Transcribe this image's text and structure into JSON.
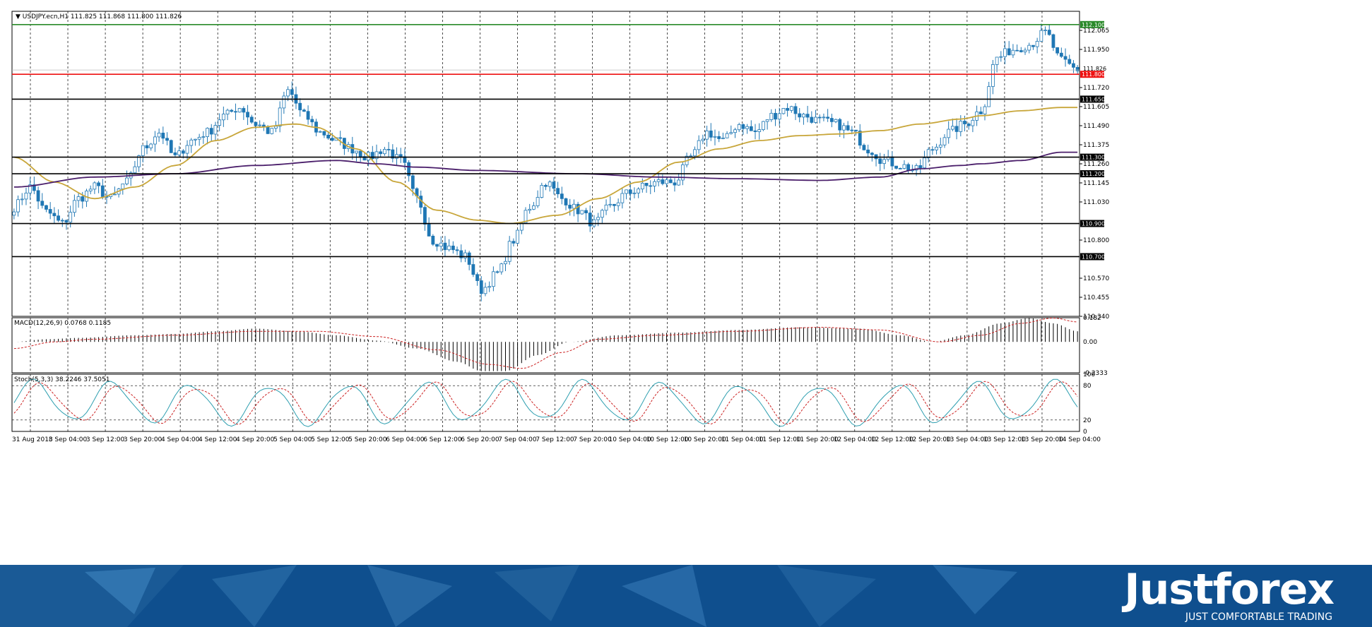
{
  "main_title": "USDJPY.ecn,H1",
  "ohlc": "111.825 111.868 111.800 111.826",
  "colors": {
    "bull": "#ffffff",
    "bear": "#1f77b4",
    "bull_border": "#1f77b4",
    "ma_fast": "#c8a63a",
    "ma_slow": "#4b1f6b",
    "macd_signal": "#cc2222",
    "stoch_main": "#2e9fb0",
    "stoch_signal": "#cc2222",
    "level_green": "#2a8a2a",
    "level_red": "#ee1111",
    "level_black": "#000000"
  },
  "chart_data": [
    {
      "type": "candlestick",
      "title": "USDJPY.ecn,H1  111.825 111.868 111.800 111.826",
      "x_tick_labels": [
        "31 Aug 2018",
        "3 Sep 04:00",
        "3 Sep 12:00",
        "3 Sep 20:00",
        "4 Sep 04:00",
        "4 Sep 12:00",
        "4 Sep 20:00",
        "5 Sep 04:00",
        "5 Sep 12:00",
        "5 Sep 20:00",
        "6 Sep 04:00",
        "6 Sep 12:00",
        "6 Sep 20:00",
        "7 Sep 04:00",
        "7 Sep 12:00",
        "7 Sep 20:00",
        "10 Sep 04:00",
        "10 Sep 12:00",
        "10 Sep 20:00",
        "11 Sep 04:00",
        "11 Sep 12:00",
        "11 Sep 20:00",
        "12 Sep 04:00",
        "12 Sep 12:00",
        "12 Sep 20:00",
        "13 Sep 04:00",
        "13 Sep 12:00",
        "13 Sep 20:00",
        "14 Sep 04:00"
      ],
      "y_tick_labels": [
        "112.065",
        "111.950",
        "111.720",
        "111.605",
        "111.490",
        "111.375",
        "111.260",
        "111.145",
        "111.030",
        "110.800",
        "110.570",
        "110.455",
        "110.340"
      ],
      "ylim": [
        110.34,
        112.18
      ],
      "levels": [
        {
          "value": 112.1,
          "label": "112.100",
          "color": "#2a8a2a"
        },
        {
          "value": 111.8,
          "label": "111.800",
          "color": "#ee1111"
        },
        {
          "value": 111.65,
          "label": "111.650",
          "color": "#000000"
        },
        {
          "value": 111.3,
          "label": "111.300",
          "color": "#000000"
        },
        {
          "value": 111.2,
          "label": "111.200",
          "color": "#000000"
        },
        {
          "value": 110.9,
          "label": "110.900",
          "color": "#000000"
        },
        {
          "value": 110.7,
          "label": "110.700",
          "color": "#000000"
        }
      ],
      "current_price": {
        "value": 111.826,
        "label": "111.826"
      },
      "close_anchors": [
        [
          0,
          111.0
        ],
        [
          4,
          111.12
        ],
        [
          8,
          110.97
        ],
        [
          12,
          110.9
        ],
        [
          16,
          111.05
        ],
        [
          20,
          111.12
        ],
        [
          24,
          111.05
        ],
        [
          28,
          111.15
        ],
        [
          32,
          111.35
        ],
        [
          36,
          111.45
        ],
        [
          40,
          111.3
        ],
        [
          44,
          111.4
        ],
        [
          48,
          111.45
        ],
        [
          52,
          111.55
        ],
        [
          56,
          111.6
        ],
        [
          60,
          111.5
        ],
        [
          64,
          111.45
        ],
        [
          68,
          111.7
        ],
        [
          72,
          111.55
        ],
        [
          76,
          111.45
        ],
        [
          80,
          111.4
        ],
        [
          84,
          111.35
        ],
        [
          88,
          111.3
        ],
        [
          92,
          111.35
        ],
        [
          96,
          111.28
        ],
        [
          100,
          111.05
        ],
        [
          104,
          110.8
        ],
        [
          108,
          110.75
        ],
        [
          112,
          110.7
        ],
        [
          116,
          110.5
        ],
        [
          120,
          110.6
        ],
        [
          124,
          110.8
        ],
        [
          128,
          111.0
        ],
        [
          132,
          111.15
        ],
        [
          136,
          111.05
        ],
        [
          140,
          110.98
        ],
        [
          144,
          110.9
        ],
        [
          148,
          111.0
        ],
        [
          152,
          111.08
        ],
        [
          156,
          111.12
        ],
        [
          160,
          111.15
        ],
        [
          164,
          111.15
        ],
        [
          168,
          111.3
        ],
        [
          172,
          111.45
        ],
        [
          176,
          111.4
        ],
        [
          180,
          111.5
        ],
        [
          184,
          111.45
        ],
        [
          188,
          111.55
        ],
        [
          192,
          111.6
        ],
        [
          196,
          111.55
        ],
        [
          200,
          111.52
        ],
        [
          204,
          111.5
        ],
        [
          208,
          111.45
        ],
        [
          212,
          111.35
        ],
        [
          216,
          111.28
        ],
        [
          220,
          111.25
        ],
        [
          224,
          111.22
        ],
        [
          228,
          111.35
        ],
        [
          232,
          111.45
        ],
        [
          236,
          111.5
        ],
        [
          240,
          111.58
        ],
        [
          244,
          111.9
        ],
        [
          248,
          111.95
        ],
        [
          252,
          111.98
        ],
        [
          256,
          112.05
        ],
        [
          260,
          111.88
        ],
        [
          264,
          111.83
        ]
      ],
      "ma_fast_anchors": [
        [
          0,
          111.3
        ],
        [
          10,
          111.15
        ],
        [
          20,
          111.05
        ],
        [
          30,
          111.12
        ],
        [
          40,
          111.25
        ],
        [
          50,
          111.4
        ],
        [
          60,
          111.48
        ],
        [
          70,
          111.5
        ],
        [
          75,
          111.48
        ],
        [
          85,
          111.35
        ],
        [
          95,
          111.15
        ],
        [
          105,
          110.98
        ],
        [
          115,
          110.92
        ],
        [
          123,
          110.9
        ],
        [
          135,
          110.95
        ],
        [
          145,
          111.05
        ],
        [
          155,
          111.15
        ],
        [
          165,
          111.27
        ],
        [
          175,
          111.35
        ],
        [
          185,
          111.4
        ],
        [
          195,
          111.43
        ],
        [
          205,
          111.44
        ],
        [
          215,
          111.46
        ],
        [
          225,
          111.5
        ],
        [
          235,
          111.53
        ],
        [
          240,
          111.55
        ],
        [
          250,
          111.58
        ],
        [
          260,
          111.6
        ]
      ],
      "ma_slow_anchors": [
        [
          0,
          111.12
        ],
        [
          20,
          111.18
        ],
        [
          40,
          111.2
        ],
        [
          60,
          111.25
        ],
        [
          80,
          111.28
        ],
        [
          90,
          111.26
        ],
        [
          100,
          111.24
        ],
        [
          115,
          111.22
        ],
        [
          140,
          111.2
        ],
        [
          160,
          111.18
        ],
        [
          180,
          111.17
        ],
        [
          200,
          111.16
        ],
        [
          215,
          111.18
        ],
        [
          225,
          111.23
        ],
        [
          235,
          111.25
        ],
        [
          240,
          111.26
        ],
        [
          250,
          111.28
        ],
        [
          260,
          111.33
        ]
      ]
    },
    {
      "type": "bar",
      "title": "MACD(12,26,9) 0.0768 0.1185",
      "y_tick_labels": [
        "0.182",
        "0.00",
        "-0.2333"
      ],
      "ylim": [
        -0.2333,
        0.182
      ],
      "macd_anchors": [
        [
          0,
          0.0
        ],
        [
          8,
          0.02
        ],
        [
          16,
          0.03
        ],
        [
          30,
          0.05
        ],
        [
          40,
          0.06
        ],
        [
          50,
          0.08
        ],
        [
          60,
          0.1
        ],
        [
          70,
          0.08
        ],
        [
          80,
          0.05
        ],
        [
          90,
          0.01
        ],
        [
          100,
          -0.05
        ],
        [
          110,
          -0.15
        ],
        [
          116,
          -0.22
        ],
        [
          122,
          -0.22
        ],
        [
          130,
          -0.1
        ],
        [
          138,
          0.0
        ],
        [
          150,
          0.05
        ],
        [
          165,
          0.07
        ],
        [
          180,
          0.09
        ],
        [
          195,
          0.11
        ],
        [
          210,
          0.1
        ],
        [
          220,
          0.05
        ],
        [
          228,
          0.0
        ],
        [
          236,
          0.05
        ],
        [
          245,
          0.14
        ],
        [
          252,
          0.18
        ],
        [
          258,
          0.14
        ],
        [
          264,
          0.08
        ]
      ],
      "signal_anchors": [
        [
          0,
          -0.05
        ],
        [
          10,
          0.0
        ],
        [
          20,
          0.02
        ],
        [
          40,
          0.05
        ],
        [
          60,
          0.08
        ],
        [
          75,
          0.08
        ],
        [
          90,
          0.04
        ],
        [
          105,
          -0.06
        ],
        [
          118,
          -0.17
        ],
        [
          126,
          -0.2
        ],
        [
          136,
          -0.08
        ],
        [
          145,
          0.02
        ],
        [
          160,
          0.05
        ],
        [
          180,
          0.08
        ],
        [
          200,
          0.11
        ],
        [
          215,
          0.09
        ],
        [
          230,
          0.0
        ],
        [
          240,
          0.05
        ],
        [
          250,
          0.14
        ],
        [
          258,
          0.18
        ],
        [
          264,
          0.15
        ]
      ]
    },
    {
      "type": "line",
      "title": "Stoch(5,3,3) 38.2246 37.5051",
      "y_tick_labels": [
        "100",
        "80",
        "20",
        "0"
      ],
      "ylim": [
        0,
        100
      ],
      "levels": [
        80,
        20
      ],
      "main_period": 19.5,
      "signal_period": 19.5
    }
  ]
}
